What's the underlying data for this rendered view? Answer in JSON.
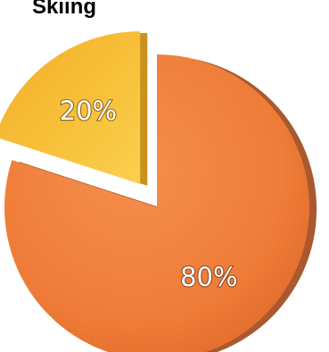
{
  "chart_data": {
    "type": "pie",
    "title": "Skiing",
    "slices": [
      {
        "label": "80%",
        "value": 80,
        "color": "#f07f3c",
        "exploded": false
      },
      {
        "label": "20%",
        "value": 20,
        "color": "#f8be36",
        "exploded": true
      }
    ],
    "start_angle_deg": 0,
    "direction": "clockwise",
    "style": "3d"
  }
}
